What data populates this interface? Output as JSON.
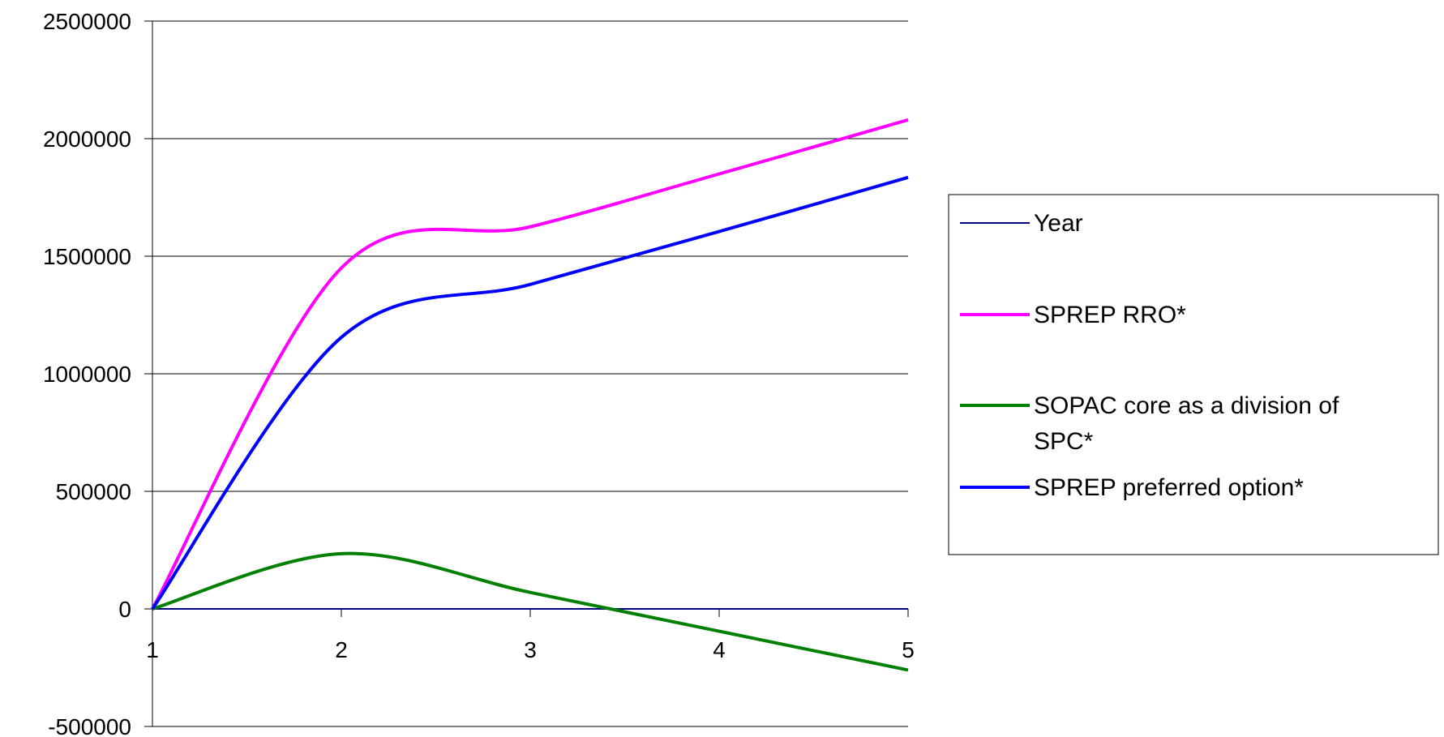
{
  "chart_data": {
    "type": "line",
    "title": "",
    "xlabel": "",
    "ylabel": "",
    "x": [
      1,
      2,
      3,
      4,
      5
    ],
    "ylim": [
      -500000,
      2500000
    ],
    "xlim": [
      1,
      5
    ],
    "y_ticks": [
      "2500000",
      "2000000",
      "1500000",
      "1000000",
      "500000",
      "0",
      "-500000"
    ],
    "x_ticks": [
      "1",
      "2",
      "3",
      "4",
      "5"
    ],
    "grid": "horizontal",
    "legend_position": "right",
    "series": [
      {
        "name": "Year",
        "color": "#000080",
        "values": [
          0,
          0,
          0,
          0,
          0
        ]
      },
      {
        "name": "SPREP RRO*",
        "color": "#ff00ff",
        "values": [
          0,
          1450000,
          1625000,
          1850000,
          2080000
        ]
      },
      {
        "name": "SOPAC core as a division of SPC*",
        "color": "#008000",
        "values": [
          0,
          235000,
          70000,
          -95000,
          -260000
        ]
      },
      {
        "name": "SPREP preferred option*",
        "color": "#0000ff",
        "values": [
          0,
          1155000,
          1380000,
          1605000,
          1835000
        ]
      }
    ]
  }
}
